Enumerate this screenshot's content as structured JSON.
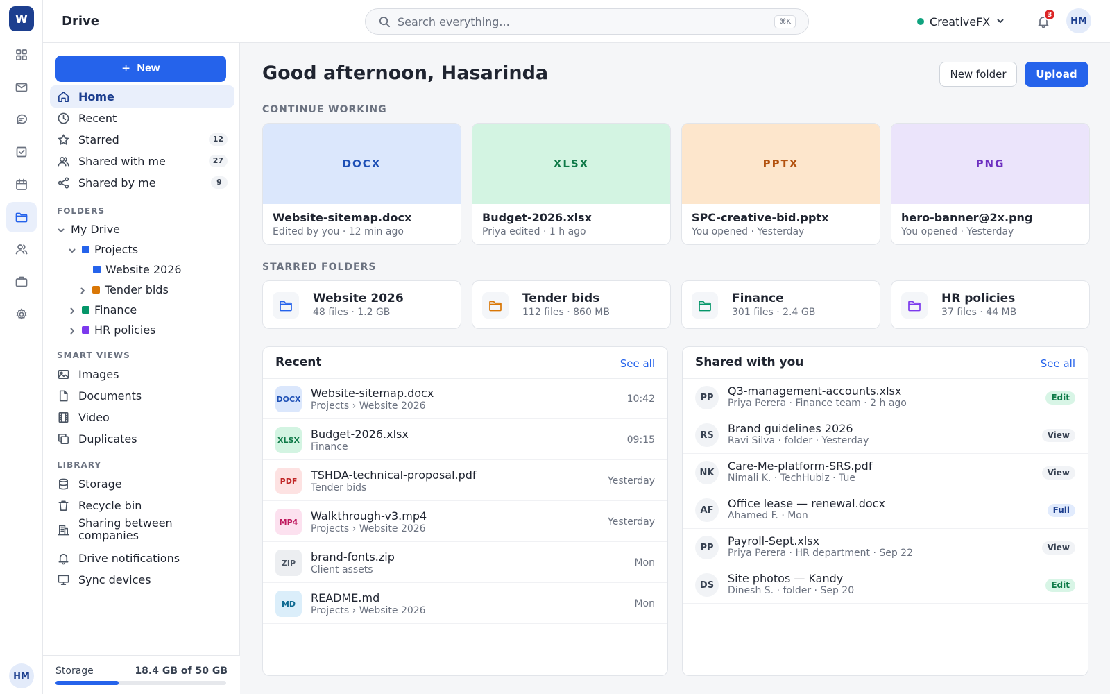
{
  "rail": {
    "logo": "W",
    "items": [
      {
        "name": "rail-apps",
        "icon": "grid-icon"
      },
      {
        "name": "rail-mail",
        "icon": "mail-icon"
      },
      {
        "name": "rail-chat",
        "icon": "chat-icon"
      },
      {
        "name": "rail-tasks",
        "icon": "checkbox-icon"
      },
      {
        "name": "rail-calendar",
        "icon": "calendar-icon"
      },
      {
        "name": "rail-drive",
        "icon": "folder-icon",
        "active": true
      },
      {
        "name": "rail-people",
        "icon": "people-icon"
      },
      {
        "name": "rail-work",
        "icon": "briefcase-icon"
      },
      {
        "name": "rail-settings",
        "icon": "gear-icon"
      }
    ],
    "avatar": "HM"
  },
  "header": {
    "title": "Drive",
    "search_placeholder": "Search everything...",
    "search_shortcut": "⌘K",
    "workspace": "CreativeFX",
    "workspace_status_color": "#10a37f",
    "notifications": "3",
    "avatar": "HM"
  },
  "sidebar": {
    "new_label": "New",
    "nav": [
      {
        "label": "Home",
        "icon": "home-icon",
        "active": true,
        "count": ""
      },
      {
        "label": "Recent",
        "icon": "clock-icon",
        "count": ""
      },
      {
        "label": "Starred",
        "icon": "star-icon",
        "count": "12"
      },
      {
        "label": "Shared with me",
        "icon": "users-icon",
        "count": "27"
      },
      {
        "label": "Shared by me",
        "icon": "share-icon",
        "count": "9"
      }
    ],
    "folders_label": "FOLDERS",
    "tree": {
      "my_drive": "My Drive",
      "projects": "Projects",
      "website": "Website 2026",
      "tender": "Tender bids",
      "finance": "Finance",
      "hr": "HR policies"
    },
    "smart_label": "SMART VIEWS",
    "smart": [
      {
        "label": "Images",
        "icon": "image-icon"
      },
      {
        "label": "Documents",
        "icon": "document-icon"
      },
      {
        "label": "Video",
        "icon": "film-icon"
      },
      {
        "label": "Duplicates",
        "icon": "copy-icon"
      }
    ],
    "library_label": "LIBRARY",
    "library": [
      {
        "label": "Storage",
        "icon": "database-icon"
      },
      {
        "label": "Recycle bin",
        "icon": "trash-icon"
      },
      {
        "label": "Sharing between companies",
        "icon": "building-icon"
      },
      {
        "label": "Drive notifications",
        "icon": "bell-icon"
      },
      {
        "label": "Sync devices",
        "icon": "monitor-icon"
      }
    ],
    "storage": {
      "label": "Storage",
      "value": "18.4 GB of 50 GB",
      "fraction": 0.368
    }
  },
  "main": {
    "greeting": "Good afternoon, Hasarinda",
    "new_folder": "New folder",
    "upload": "Upload",
    "continue_label": "CONTINUE WORKING",
    "continue": [
      {
        "type": "DOCX",
        "name": "Website-sitemap.docx",
        "meta": "Edited by you · 12 min ago",
        "bg": "#dbe7fc",
        "fg": "#1d4fb5"
      },
      {
        "type": "XLSX",
        "name": "Budget-2026.xlsx",
        "meta": "Priya edited · 1 h ago",
        "bg": "#d3f4e2",
        "fg": "#0f7a48"
      },
      {
        "type": "PPTX",
        "name": "SPC-creative-bid.pptx",
        "meta": "You opened · Yesterday",
        "bg": "#fde6cc",
        "fg": "#b3520f"
      },
      {
        "type": "PNG",
        "name": "hero-banner@2x.png",
        "meta": "You opened · Yesterday",
        "bg": "#ebe4fb",
        "fg": "#6d2fc0"
      }
    ],
    "starred_label": "STARRED FOLDERS",
    "starred": [
      {
        "name": "Website 2026",
        "meta": "48 files · 1.2 GB",
        "color": "#2563eb"
      },
      {
        "name": "Tender bids",
        "meta": "112 files · 860 MB",
        "color": "#d97706"
      },
      {
        "name": "Finance",
        "meta": "301 files · 2.4 GB",
        "color": "#059669"
      },
      {
        "name": "HR policies",
        "meta": "37 files · 44 MB",
        "color": "#7c3aed"
      }
    ],
    "recent": {
      "title": "Recent",
      "see_all": "See all",
      "rows": [
        {
          "type": "DOCX",
          "name": "Website-sitemap.docx",
          "path": "Projects › Website 2026",
          "time": "10:42",
          "bg": "#dbe7fc",
          "fg": "#1d4fb5"
        },
        {
          "type": "XLSX",
          "name": "Budget-2026.xlsx",
          "path": "Finance",
          "time": "09:15",
          "bg": "#d3f4e2",
          "fg": "#0f7a48"
        },
        {
          "type": "PDF",
          "name": "TSHDA-technical-proposal.pdf",
          "path": "Tender bids",
          "time": "Yesterday",
          "bg": "#fde2e2",
          "fg": "#c02626"
        },
        {
          "type": "MP4",
          "name": "Walkthrough-v3.mp4",
          "path": "Projects › Website 2026",
          "time": "Yesterday",
          "bg": "#fce1ef",
          "fg": "#be185d"
        },
        {
          "type": "ZIP",
          "name": "brand-fonts.zip",
          "path": "Client assets",
          "time": "Mon",
          "bg": "#eceef1",
          "fg": "#4b5563"
        },
        {
          "type": "MD",
          "name": "README.md",
          "path": "Projects › Website 2026",
          "time": "Mon",
          "bg": "#dbeefa",
          "fg": "#0e6a91"
        }
      ]
    },
    "shared": {
      "title": "Shared with you",
      "see_all": "See all",
      "rows": [
        {
          "initials": "PP",
          "name": "Q3-management-accounts.xlsx",
          "sub": "Priya Perera · Finance team · 2 h ago",
          "perm": "Edit",
          "perm_bg": "#d8f5e6",
          "perm_fg": "#0f7a48"
        },
        {
          "initials": "RS",
          "name": "Brand guidelines 2026",
          "sub": "Ravi Silva · folder · Yesterday",
          "perm": "View",
          "perm_bg": "#f1f3f6",
          "perm_fg": "#374151"
        },
        {
          "initials": "NK",
          "name": "Care-Me-platform-SRS.pdf",
          "sub": "Nimali K. · TechHubiz · Tue",
          "perm": "View",
          "perm_bg": "#f1f3f6",
          "perm_fg": "#374151"
        },
        {
          "initials": "AF",
          "name": "Office lease — renewal.docx",
          "sub": "Ahamed F. · Mon",
          "perm": "Full",
          "perm_bg": "#e1ebfd",
          "perm_fg": "#1d3f8f"
        },
        {
          "initials": "PP",
          "name": "Payroll-Sept.xlsx",
          "sub": "Priya Perera · HR department · Sep 22",
          "perm": "View",
          "perm_bg": "#f1f3f6",
          "perm_fg": "#374151"
        },
        {
          "initials": "DS",
          "name": "Site photos — Kandy",
          "sub": "Dinesh S. · folder · Sep 20",
          "perm": "Edit",
          "perm_bg": "#d8f5e6",
          "perm_fg": "#0f7a48"
        }
      ]
    }
  }
}
